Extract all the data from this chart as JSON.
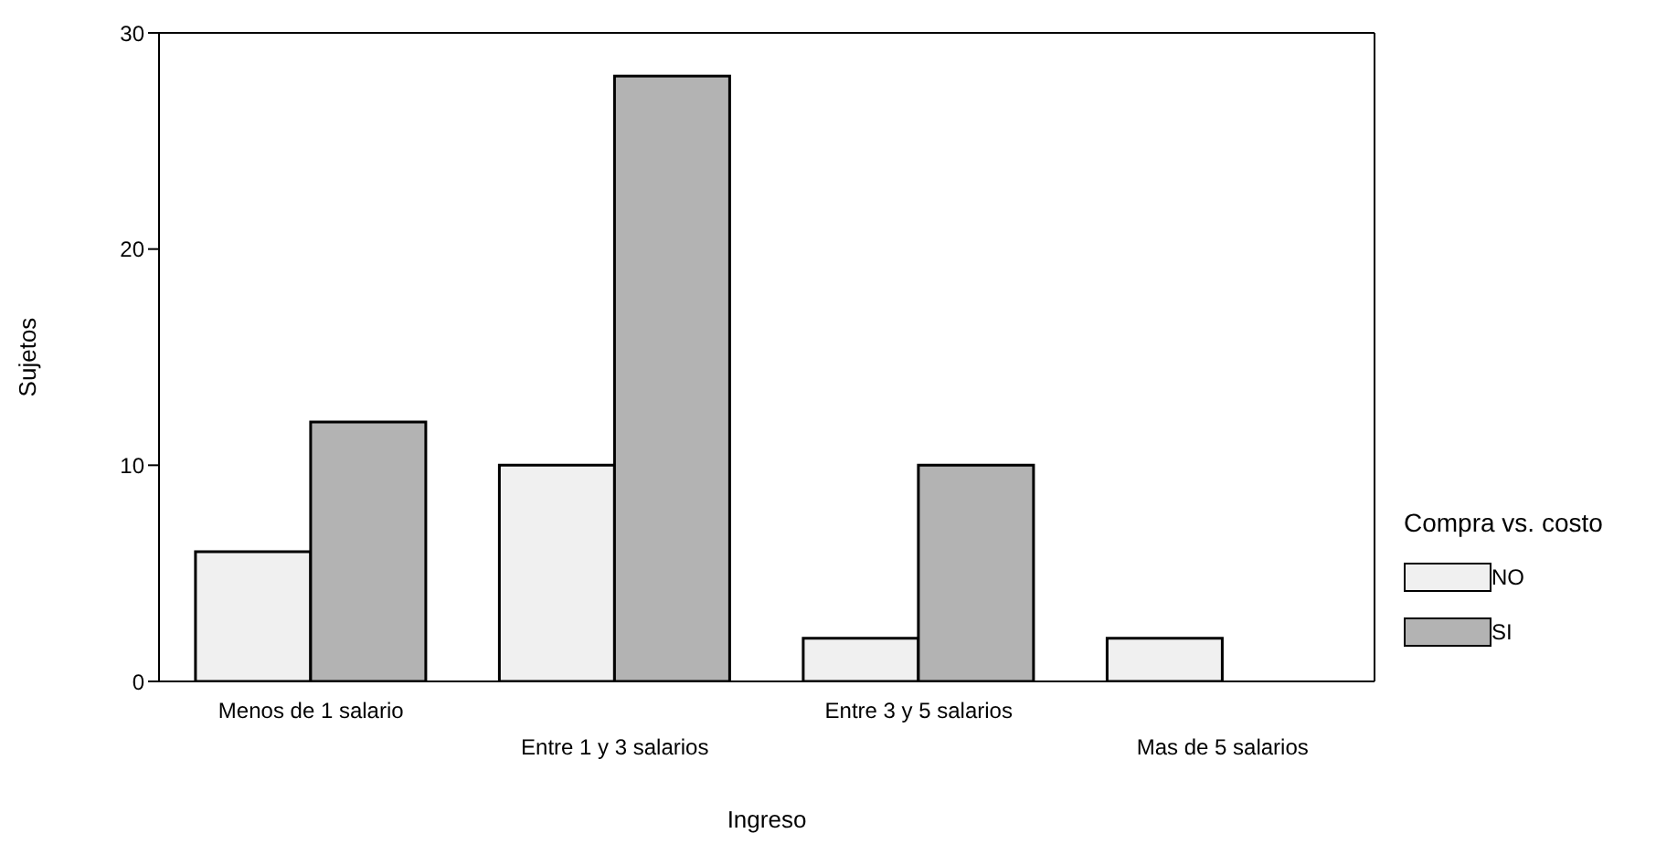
{
  "chart_data": {
    "type": "bar",
    "xlabel": "Ingreso",
    "ylabel": "Sujetos",
    "legend_title": "Compra vs. costo",
    "legend": "right",
    "categories": [
      "Menos de 1 salario",
      "Entre 1 y 3 salarios",
      "Entre 3 y 5 salarios",
      "Mas de 5 salarios"
    ],
    "series": [
      {
        "name": "NO",
        "color": "#f0f0f0",
        "values": [
          6,
          10,
          2,
          2
        ]
      },
      {
        "name": "SI",
        "color": "#b3b3b3",
        "values": [
          12,
          28,
          10,
          null
        ]
      }
    ],
    "ylim": [
      0,
      30
    ],
    "yticks": [
      0,
      10,
      20,
      30
    ],
    "grid": false
  }
}
